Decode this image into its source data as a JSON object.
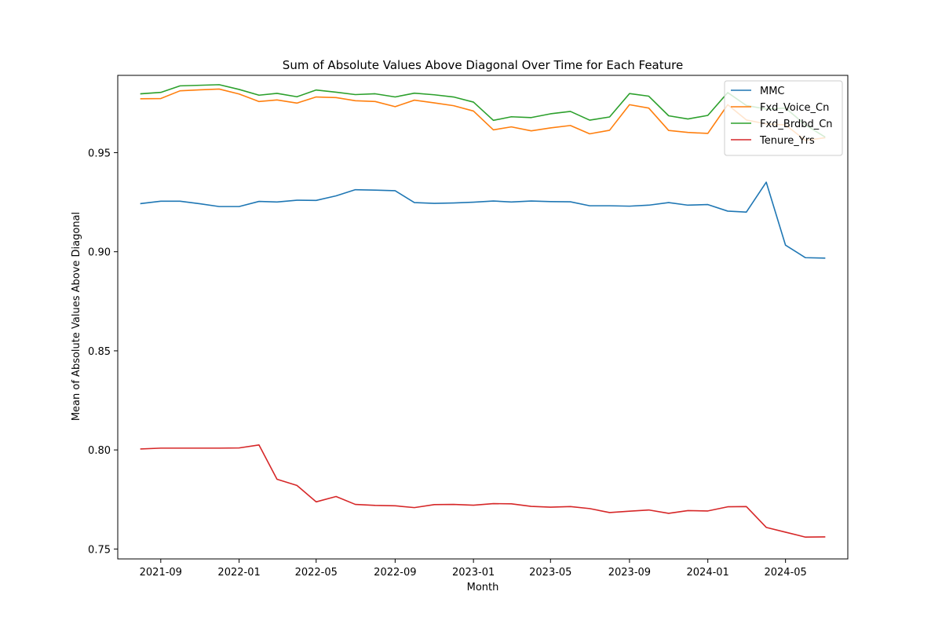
{
  "chart_data": {
    "type": "line",
    "title": "Sum of Absolute Values Above Diagonal Over Time for Each Feature",
    "xlabel": "Month",
    "ylabel": "Mean of Absolute Values Above Diagonal",
    "x": [
      "2021-08",
      "2021-09",
      "2021-10",
      "2021-11",
      "2021-12",
      "2022-01",
      "2022-02",
      "2022-03",
      "2022-04",
      "2022-05",
      "2022-06",
      "2022-07",
      "2022-08",
      "2022-09",
      "2022-10",
      "2022-11",
      "2022-12",
      "2023-01",
      "2023-02",
      "2023-03",
      "2023-04",
      "2023-05",
      "2023-06",
      "2023-07",
      "2023-08",
      "2023-09",
      "2023-10",
      "2023-11",
      "2023-12",
      "2024-01",
      "2024-02",
      "2024-03",
      "2024-04",
      "2024-05",
      "2024-06",
      "2024-07"
    ],
    "xlim": [
      "2021-06-26",
      "2024-08-06"
    ],
    "ylim": [
      0.745,
      0.989
    ],
    "x_ticks": [
      "2021-09",
      "2022-01",
      "2022-05",
      "2022-09",
      "2023-01",
      "2023-05",
      "2023-09",
      "2024-01",
      "2024-05"
    ],
    "y_ticks": [
      "0.75",
      "0.80",
      "0.85",
      "0.90",
      "0.95"
    ],
    "legend_position": "top-right",
    "grid": false,
    "series": [
      {
        "name": "MMC",
        "color": "#1f77b4",
        "values": [
          0.9243,
          0.9255,
          0.9255,
          0.9242,
          0.9228,
          0.9228,
          0.9254,
          0.9251,
          0.926,
          0.9259,
          0.9282,
          0.9313,
          0.9311,
          0.9308,
          0.9248,
          0.9244,
          0.9246,
          0.925,
          0.9256,
          0.9251,
          0.9256,
          0.9253,
          0.9252,
          0.9232,
          0.9232,
          0.923,
          0.9235,
          0.9248,
          0.9235,
          0.9238,
          0.9205,
          0.92,
          0.9351,
          0.9033,
          0.897,
          0.8968
        ]
      },
      {
        "name": "Fxd_Voice_Cn",
        "color": "#ff7f0e",
        "values": [
          0.9772,
          0.9773,
          0.9812,
          0.9817,
          0.9821,
          0.9796,
          0.9758,
          0.9766,
          0.975,
          0.9781,
          0.9778,
          0.9762,
          0.9758,
          0.9732,
          0.9765,
          0.9751,
          0.9737,
          0.971,
          0.9615,
          0.963,
          0.961,
          0.9625,
          0.9637,
          0.9595,
          0.9613,
          0.9742,
          0.9725,
          0.9612,
          0.9602,
          0.9597,
          0.9742,
          0.9665,
          0.9645,
          0.964,
          0.9562,
          0.9575
        ]
      },
      {
        "name": "Fxd_Brdbd_Cn",
        "color": "#2ca02c",
        "values": [
          0.9797,
          0.9804,
          0.9837,
          0.984,
          0.9843,
          0.9819,
          0.979,
          0.9799,
          0.9782,
          0.9816,
          0.9805,
          0.9793,
          0.9797,
          0.9781,
          0.98,
          0.9792,
          0.9781,
          0.9755,
          0.9663,
          0.9681,
          0.9677,
          0.9696,
          0.9708,
          0.9664,
          0.968,
          0.9798,
          0.9785,
          0.9686,
          0.967,
          0.9688,
          0.9803,
          0.9738,
          0.972,
          0.9725,
          0.964,
          0.958
        ]
      },
      {
        "name": "Tenure_Yrs",
        "color": "#d62728",
        "values": [
          0.8005,
          0.8009,
          0.8009,
          0.8009,
          0.8009,
          0.801,
          0.8025,
          0.7852,
          0.7821,
          0.7738,
          0.7765,
          0.7725,
          0.772,
          0.7718,
          0.7709,
          0.7724,
          0.7725,
          0.7721,
          0.7729,
          0.7728,
          0.7715,
          0.7711,
          0.7714,
          0.7704,
          0.7684,
          0.7691,
          0.7697,
          0.768,
          0.7694,
          0.7692,
          0.7713,
          0.7714,
          0.7609,
          0.7585,
          0.756,
          0.7561
        ]
      }
    ]
  }
}
